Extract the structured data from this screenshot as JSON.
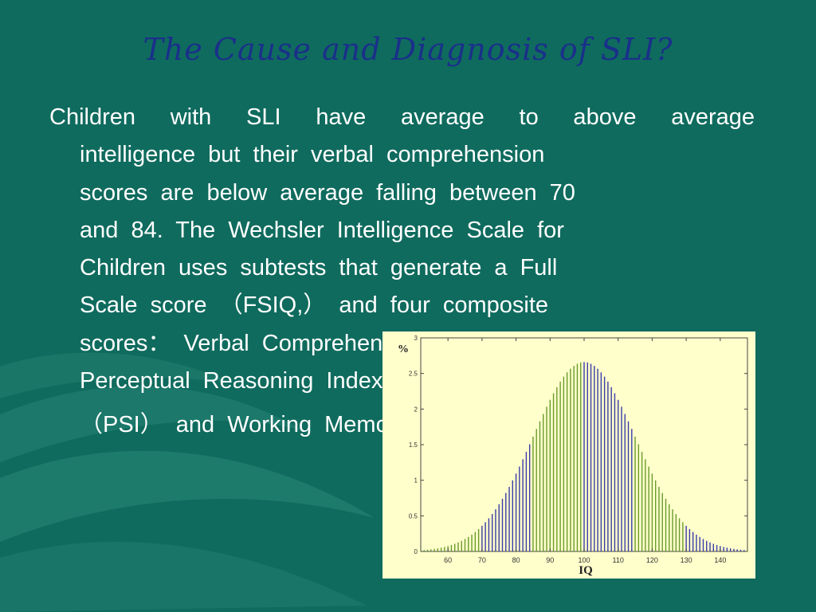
{
  "slide": {
    "title": "The Cause and Diagnosis of SLI?",
    "body_lines": [
      "Children with SLI have average to above average",
      "intelligence but their verbal comprehension",
      "scores are below average falling between 70",
      "and 84. The Wechsler Intelligence Scale for",
      "Children uses subtests that generate a Full",
      "Scale score （FSIQ,） and four composite",
      "scores： Verbal Comprehension Index (VCI)",
      "Perceptual Reasoning Index (PRI)",
      "（PSI） and Working Memory Index (WMI)"
    ]
  },
  "chart_data": {
    "type": "bar",
    "distribution": "normal",
    "mean": 100,
    "sd": 15,
    "x_range": [
      52,
      148
    ],
    "x_step": 1,
    "ylim": [
      0,
      3
    ],
    "x_ticks": [
      60,
      70,
      80,
      90,
      100,
      110,
      120,
      130,
      140
    ],
    "y_ticks": [
      0,
      0.5,
      1,
      1.5,
      2,
      2.5,
      3
    ],
    "ylabel": "%",
    "xlabel": "IQ",
    "colors": {
      "panel_bg": "#ffffcc",
      "bar_green": "#6a9a2a",
      "bar_blue": "#3a3aaa"
    },
    "blue_bands": [
      [
        70,
        85
      ],
      [
        100,
        115
      ],
      [
        130,
        148
      ]
    ]
  },
  "colors": {
    "background": "#0f6b5e",
    "title": "#1a2f8a",
    "body_text": "#ffffff"
  }
}
